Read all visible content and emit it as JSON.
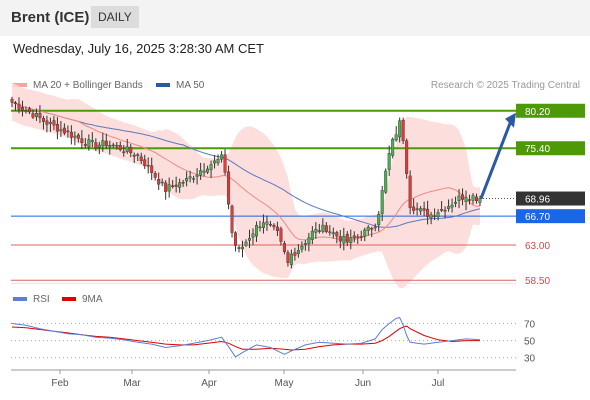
{
  "header": {
    "title": "Brent (ICE)",
    "timeframe": "DAILY"
  },
  "date_line": "Wednesday, July 16, 2025 3:28:30 AM CET",
  "legend": {
    "ma20_label": "MA 20 + Bollinger Bands",
    "ma20_color": "#f08a84",
    "ma50_label": "MA 50",
    "ma50_color": "#2c5aa0",
    "credit": "Research © 2025 Trading Central"
  },
  "rsi_legend": {
    "rsi_label": "RSI",
    "rsi_color": "#5b7fd6",
    "ma9_label": "9MA",
    "ma9_color": "#e00000"
  },
  "chart_data": {
    "type": "candlestick",
    "title": "Brent (ICE)",
    "timeframe": "DAILY",
    "months": [
      "Feb",
      "Mar",
      "Apr",
      "May",
      "Jun",
      "Jul"
    ],
    "ylim": [
      57.5,
      83.5
    ],
    "current_price": "68.96",
    "levels": [
      {
        "value": "80.20",
        "type": "resistance",
        "color": "#4e9a06"
      },
      {
        "value": "75.40",
        "type": "resistance",
        "color": "#4e9a06"
      },
      {
        "value": "66.70",
        "type": "support-ma50",
        "color": "#1a66e6"
      },
      {
        "value": "63.00",
        "type": "support",
        "color": "#e06060"
      },
      {
        "value": "58.50",
        "type": "support",
        "color": "#e06060"
      }
    ],
    "close_path": [
      [
        0,
        81.3
      ],
      [
        3,
        80.5
      ],
      [
        6,
        79.8
      ],
      [
        9,
        78.9
      ],
      [
        12,
        78.2
      ],
      [
        15,
        77.6
      ],
      [
        18,
        76.9
      ],
      [
        21,
        76.2
      ],
      [
        24,
        75.8
      ],
      [
        27,
        76.0
      ],
      [
        30,
        75.6
      ],
      [
        33,
        75.1
      ],
      [
        36,
        74.4
      ],
      [
        38,
        73.5
      ],
      [
        40,
        72.4
      ],
      [
        42,
        71.2
      ],
      [
        44,
        70.1
      ],
      [
        46,
        70.6
      ],
      [
        48,
        70.9
      ],
      [
        50,
        71.3
      ],
      [
        52,
        71.9
      ],
      [
        54,
        72.6
      ],
      [
        56,
        73.2
      ],
      [
        58,
        73.6
      ],
      [
        60,
        74.1
      ],
      [
        61,
        72.5
      ],
      [
        62,
        68.3
      ],
      [
        63,
        64.6
      ],
      [
        64,
        63.0
      ],
      [
        65,
        62.2
      ],
      [
        66,
        62.8
      ],
      [
        68,
        64.1
      ],
      [
        70,
        65.3
      ],
      [
        72,
        66.1
      ],
      [
        74,
        65.3
      ],
      [
        76,
        64.4
      ],
      [
        77,
        63.1
      ],
      [
        78,
        61.9
      ],
      [
        79,
        60.6
      ],
      [
        80,
        61.8
      ],
      [
        82,
        62.5
      ],
      [
        84,
        63.5
      ],
      [
        86,
        64.6
      ],
      [
        88,
        65.0
      ],
      [
        90,
        65.2
      ],
      [
        92,
        64.5
      ],
      [
        94,
        63.9
      ],
      [
        96,
        63.4
      ],
      [
        98,
        63.8
      ],
      [
        100,
        64.4
      ],
      [
        102,
        64.9
      ],
      [
        104,
        65.8
      ],
      [
        105,
        67.3
      ],
      [
        106,
        69.8
      ],
      [
        107,
        72.3
      ],
      [
        108,
        74.6
      ],
      [
        109,
        76.2
      ],
      [
        110,
        77.4
      ],
      [
        111,
        78.6
      ],
      [
        112,
        76.7
      ],
      [
        113,
        72.6
      ],
      [
        114,
        68.2
      ],
      [
        116,
        67.6
      ],
      [
        118,
        67.1
      ],
      [
        120,
        66.9
      ],
      [
        122,
        67.4
      ],
      [
        124,
        67.8
      ],
      [
        126,
        68.4
      ],
      [
        128,
        69.0
      ],
      [
        130,
        69.4
      ],
      [
        132,
        69.2
      ],
      [
        134,
        68.96
      ]
    ],
    "rsi": {
      "ticks": [
        "70",
        "50",
        "30"
      ],
      "rsi_path": [
        [
          0,
          70
        ],
        [
          4,
          68
        ],
        [
          8,
          64
        ],
        [
          12,
          61
        ],
        [
          16,
          58
        ],
        [
          20,
          57
        ],
        [
          24,
          54
        ],
        [
          28,
          53
        ],
        [
          32,
          51
        ],
        [
          36,
          48
        ],
        [
          40,
          46
        ],
        [
          44,
          42
        ],
        [
          48,
          44
        ],
        [
          52,
          47
        ],
        [
          56,
          50
        ],
        [
          60,
          54
        ],
        [
          62,
          43
        ],
        [
          64,
          31
        ],
        [
          66,
          36
        ],
        [
          70,
          45
        ],
        [
          74,
          42
        ],
        [
          78,
          34
        ],
        [
          80,
          38
        ],
        [
          84,
          45
        ],
        [
          88,
          48
        ],
        [
          92,
          47
        ],
        [
          96,
          46
        ],
        [
          100,
          47
        ],
        [
          104,
          52
        ],
        [
          106,
          63
        ],
        [
          108,
          70
        ],
        [
          110,
          76
        ],
        [
          111,
          77
        ],
        [
          112,
          68
        ],
        [
          113,
          56
        ],
        [
          114,
          48
        ],
        [
          118,
          46
        ],
        [
          122,
          48
        ],
        [
          126,
          50
        ],
        [
          130,
          52
        ],
        [
          134,
          51
        ]
      ],
      "ma9_path": [
        [
          0,
          66
        ],
        [
          4,
          65
        ],
        [
          8,
          63
        ],
        [
          12,
          61
        ],
        [
          16,
          59
        ],
        [
          20,
          57
        ],
        [
          24,
          55
        ],
        [
          28,
          54
        ],
        [
          32,
          52
        ],
        [
          36,
          50
        ],
        [
          40,
          48
        ],
        [
          44,
          46
        ],
        [
          48,
          45
        ],
        [
          52,
          45
        ],
        [
          56,
          47
        ],
        [
          60,
          49
        ],
        [
          62,
          47
        ],
        [
          64,
          43
        ],
        [
          66,
          40
        ],
        [
          70,
          40
        ],
        [
          74,
          41
        ],
        [
          78,
          40
        ],
        [
          80,
          39
        ],
        [
          84,
          40
        ],
        [
          88,
          43
        ],
        [
          92,
          45
        ],
        [
          96,
          46
        ],
        [
          100,
          46
        ],
        [
          104,
          47
        ],
        [
          106,
          50
        ],
        [
          108,
          55
        ],
        [
          110,
          61
        ],
        [
          111,
          64
        ],
        [
          112,
          66
        ],
        [
          113,
          67
        ],
        [
          114,
          64
        ],
        [
          118,
          56
        ],
        [
          122,
          51
        ],
        [
          126,
          49
        ],
        [
          130,
          50
        ],
        [
          134,
          50
        ]
      ]
    }
  }
}
